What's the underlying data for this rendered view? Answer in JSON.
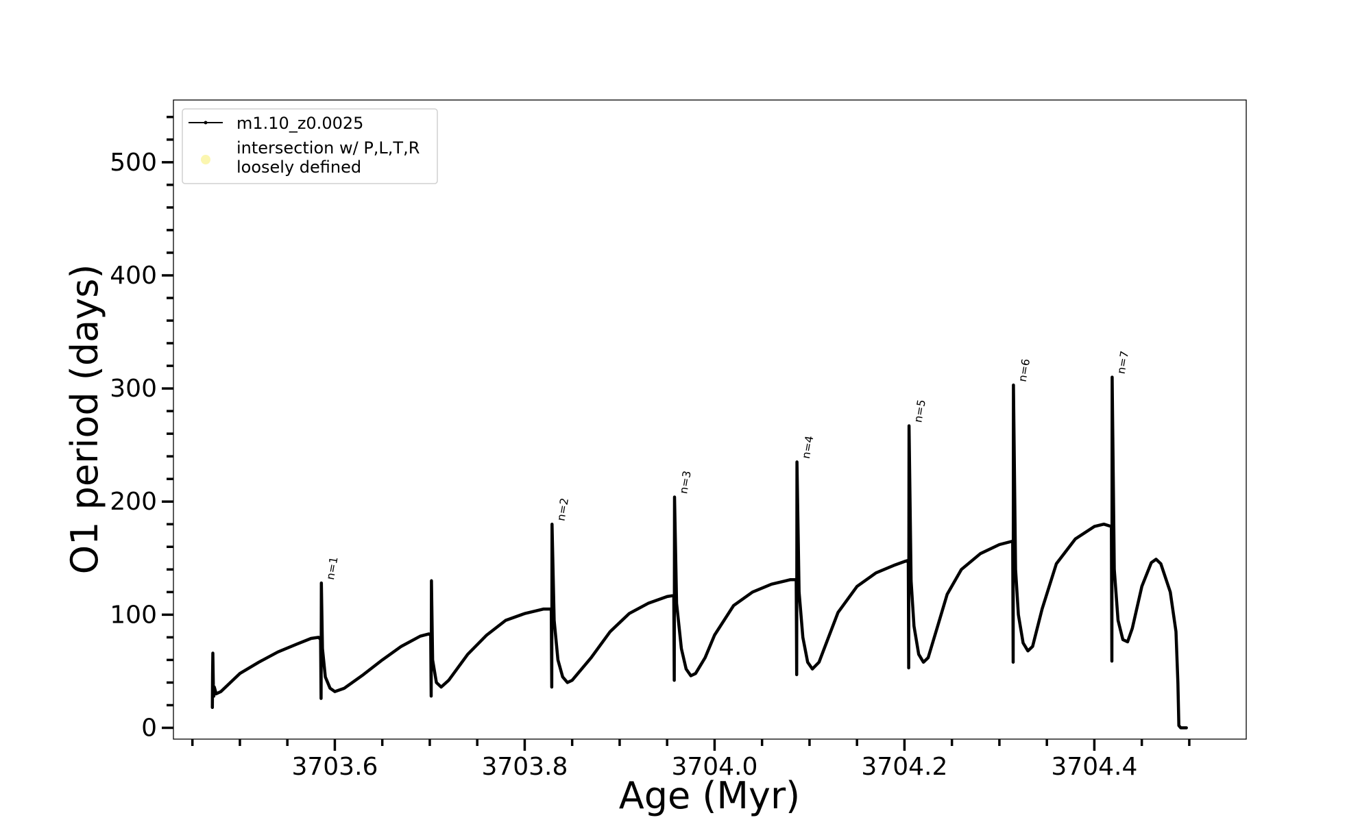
{
  "chart_data": {
    "type": "line",
    "title": "",
    "xlabel": "Age (Myr)",
    "ylabel": "O1 period (days)",
    "xlim": [
      3703.43,
      3704.56
    ],
    "ylim": [
      -10,
      555
    ],
    "xticks_major": [
      3703.6,
      3703.8,
      3704.0,
      3704.2,
      3704.4
    ],
    "xtick_labels": [
      "3703.6",
      "3703.8",
      "3704.0",
      "3704.2",
      "3704.4"
    ],
    "xticks_minor": [
      3703.45,
      3703.5,
      3703.55,
      3703.65,
      3703.7,
      3703.75,
      3703.85,
      3703.9,
      3703.95,
      3704.05,
      3704.1,
      3704.15,
      3704.25,
      3704.3,
      3704.35,
      3704.45,
      3704.5
    ],
    "yticks_major": [
      0,
      100,
      200,
      300,
      400,
      500
    ],
    "ytick_labels": [
      "0",
      "100",
      "200",
      "300",
      "400",
      "500"
    ],
    "yticks_minor": [
      20,
      40,
      60,
      80,
      120,
      140,
      160,
      180,
      220,
      240,
      260,
      280,
      320,
      340,
      360,
      380,
      420,
      440,
      460,
      480,
      520,
      540
    ],
    "grid": false,
    "legend": {
      "placement": "top-left",
      "entries": [
        {
          "label": "m1.10_z0.0025",
          "marker": "line-dot",
          "color": "#000000"
        },
        {
          "label_lines": [
            "intersection w/ P,L,T,R",
            "loosely defined"
          ],
          "marker": "circle",
          "color": "#fbf6b0"
        }
      ]
    },
    "series": [
      {
        "name": "m1.10_z0.0025",
        "color": "#000000",
        "points": [
          [
            3703.471,
            18
          ],
          [
            3703.4712,
            47
          ],
          [
            3703.4715,
            66
          ],
          [
            3703.472,
            38
          ],
          [
            3703.4725,
            28
          ],
          [
            3703.473,
            36
          ],
          [
            3703.475,
            30
          ],
          [
            3703.48,
            32
          ],
          [
            3703.49,
            40
          ],
          [
            3703.5,
            48
          ],
          [
            3703.52,
            58
          ],
          [
            3703.54,
            67
          ],
          [
            3703.56,
            74
          ],
          [
            3703.575,
            79
          ],
          [
            3703.583,
            80
          ],
          [
            3703.585,
            78
          ],
          [
            3703.5855,
            26
          ],
          [
            3703.5858,
            128
          ],
          [
            3703.587,
            70
          ],
          [
            3703.59,
            45
          ],
          [
            3703.595,
            35
          ],
          [
            3703.6,
            32
          ],
          [
            3703.61,
            35
          ],
          [
            3703.63,
            47
          ],
          [
            3703.65,
            60
          ],
          [
            3703.67,
            72
          ],
          [
            3703.69,
            81
          ],
          [
            3703.699,
            83
          ],
          [
            3703.701,
            82
          ],
          [
            3703.7015,
            28
          ],
          [
            3703.7018,
            130
          ],
          [
            3703.703,
            60
          ],
          [
            3703.707,
            40
          ],
          [
            3703.712,
            36
          ],
          [
            3703.72,
            42
          ],
          [
            3703.74,
            65
          ],
          [
            3703.76,
            82
          ],
          [
            3703.78,
            95
          ],
          [
            3703.8,
            101
          ],
          [
            3703.82,
            105
          ],
          [
            3703.828,
            105
          ],
          [
            3703.8285,
            36
          ],
          [
            3703.8288,
            180
          ],
          [
            3703.831,
            95
          ],
          [
            3703.835,
            60
          ],
          [
            3703.84,
            45
          ],
          [
            3703.845,
            40
          ],
          [
            3703.85,
            42
          ],
          [
            3703.87,
            62
          ],
          [
            3703.89,
            85
          ],
          [
            3703.91,
            101
          ],
          [
            3703.93,
            110
          ],
          [
            3703.95,
            116
          ],
          [
            3703.957,
            117
          ],
          [
            3703.9575,
            42
          ],
          [
            3703.9578,
            204
          ],
          [
            3703.96,
            110
          ],
          [
            3703.965,
            70
          ],
          [
            3703.97,
            52
          ],
          [
            3703.975,
            46
          ],
          [
            3703.98,
            48
          ],
          [
            3703.99,
            62
          ],
          [
            3704.0,
            82
          ],
          [
            3704.02,
            108
          ],
          [
            3704.04,
            120
          ],
          [
            3704.06,
            127
          ],
          [
            3704.08,
            131
          ],
          [
            3704.086,
            131
          ],
          [
            3704.0865,
            47
          ],
          [
            3704.0868,
            235
          ],
          [
            3704.089,
            120
          ],
          [
            3704.093,
            80
          ],
          [
            3704.098,
            58
          ],
          [
            3704.103,
            52
          ],
          [
            3704.11,
            58
          ],
          [
            3704.12,
            80
          ],
          [
            3704.13,
            102
          ],
          [
            3704.15,
            125
          ],
          [
            3704.17,
            137
          ],
          [
            3704.19,
            144
          ],
          [
            3704.2,
            147
          ],
          [
            3704.204,
            148
          ],
          [
            3704.2045,
            53
          ],
          [
            3704.2048,
            267
          ],
          [
            3704.207,
            130
          ],
          [
            3704.21,
            90
          ],
          [
            3704.215,
            65
          ],
          [
            3704.22,
            58
          ],
          [
            3704.225,
            62
          ],
          [
            3704.235,
            90
          ],
          [
            3704.245,
            118
          ],
          [
            3704.26,
            140
          ],
          [
            3704.28,
            154
          ],
          [
            3704.3,
            162
          ],
          [
            3704.314,
            165
          ],
          [
            3704.3145,
            58
          ],
          [
            3704.3148,
            303
          ],
          [
            3704.317,
            140
          ],
          [
            3704.32,
            100
          ],
          [
            3704.325,
            75
          ],
          [
            3704.33,
            68
          ],
          [
            3704.335,
            72
          ],
          [
            3704.345,
            105
          ],
          [
            3704.36,
            145
          ],
          [
            3704.38,
            167
          ],
          [
            3704.4,
            178
          ],
          [
            3704.41,
            180
          ],
          [
            3704.418,
            178
          ],
          [
            3704.4185,
            59
          ],
          [
            3704.4188,
            310
          ],
          [
            3704.421,
            140
          ],
          [
            3704.425,
            95
          ],
          [
            3704.43,
            78
          ],
          [
            3704.435,
            76
          ],
          [
            3704.44,
            88
          ],
          [
            3704.45,
            125
          ],
          [
            3704.46,
            146
          ],
          [
            3704.465,
            149
          ],
          [
            3704.47,
            145
          ],
          [
            3704.48,
            120
          ],
          [
            3704.486,
            85
          ],
          [
            3704.488,
            40
          ],
          [
            3704.489,
            2
          ],
          [
            3704.491,
            0
          ],
          [
            3704.497,
            0
          ]
        ]
      }
    ],
    "annotations": [
      {
        "text": "n=1",
        "x": 3703.5858,
        "y": 128
      },
      {
        "text": "n=2",
        "x": 3703.8288,
        "y": 180
      },
      {
        "text": "n=3",
        "x": 3703.9578,
        "y": 204
      },
      {
        "text": "n=4",
        "x": 3704.0868,
        "y": 235
      },
      {
        "text": "n=5",
        "x": 3704.2048,
        "y": 267
      },
      {
        "text": "n=6",
        "x": 3704.3148,
        "y": 303
      },
      {
        "text": "n=7",
        "x": 3704.4188,
        "y": 310
      }
    ]
  }
}
